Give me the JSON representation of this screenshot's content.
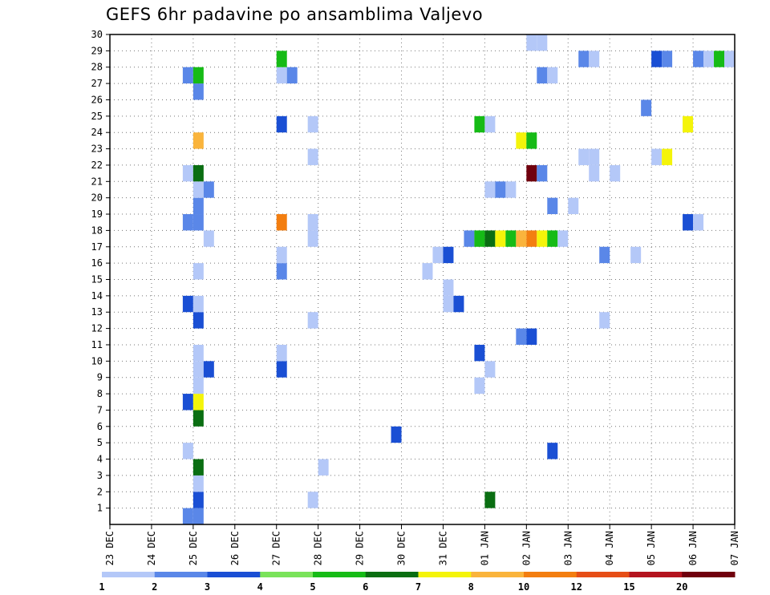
{
  "title": "GEFS 6hr padavine po ansamblima Valjevo",
  "chart_data": {
    "type": "heatmap",
    "title": "GEFS 6hr padavine po ansamblima Valjevo",
    "xlabel": "",
    "ylabel": "",
    "x_tick_labels": [
      "23 DEC",
      "24 DEC",
      "25 DEC",
      "26 DEC",
      "27 DEC",
      "28 DEC",
      "29 DEC",
      "30 DEC",
      "31 DEC",
      "01 JAN",
      "02 JAN",
      "03 JAN",
      "04 JAN",
      "05 JAN",
      "06 JAN",
      "07 JAN"
    ],
    "y_tick_labels": [
      "1",
      "2",
      "3",
      "4",
      "5",
      "6",
      "7",
      "8",
      "9",
      "10",
      "11",
      "12",
      "13",
      "14",
      "15",
      "16",
      "17",
      "18",
      "19",
      "20",
      "21",
      "22",
      "23",
      "24",
      "25",
      "26",
      "27",
      "28",
      "29",
      "30"
    ],
    "ylim": [
      0,
      30
    ],
    "time_step_hours": 6,
    "grid": true,
    "colorbar": {
      "position": "bottom",
      "labels": [
        "1",
        "2",
        "3",
        "4",
        "5",
        "6",
        "7",
        "8",
        "10",
        "12",
        "15",
        "20"
      ],
      "colors": [
        "#b4c8f8",
        "#5a87e8",
        "#1a4fd4",
        "#7ae35a",
        "#16bb16",
        "#0a6e12",
        "#f4f40a",
        "#fab43c",
        "#f37e10",
        "#e64e16",
        "#b4141e",
        "#70000e"
      ]
    },
    "cells": [
      {
        "member": 0,
        "date": "24 DEC",
        "hour": 18,
        "value": 2
      },
      {
        "member": 0,
        "date": "25 DEC",
        "hour": 0,
        "value": 2
      },
      {
        "member": 1,
        "date": "25 DEC",
        "hour": 0,
        "value": 3
      },
      {
        "member": 1,
        "date": "27 DEC",
        "hour": 18,
        "value": 1
      },
      {
        "member": 1,
        "date": "01 JAN",
        "hour": 0,
        "value": 6
      },
      {
        "member": 2,
        "date": "25 DEC",
        "hour": 0,
        "value": 1
      },
      {
        "member": 3,
        "date": "25 DEC",
        "hour": 0,
        "value": 6
      },
      {
        "member": 3,
        "date": "28 DEC",
        "hour": 0,
        "value": 1
      },
      {
        "member": 4,
        "date": "24 DEC",
        "hour": 18,
        "value": 1
      },
      {
        "member": 4,
        "date": "02 JAN",
        "hour": 12,
        "value": 3
      },
      {
        "member": 5,
        "date": "29 DEC",
        "hour": 18,
        "value": 3
      },
      {
        "member": 6,
        "date": "25 DEC",
        "hour": 0,
        "value": 6
      },
      {
        "member": 7,
        "date": "24 DEC",
        "hour": 18,
        "value": 3
      },
      {
        "member": 7,
        "date": "25 DEC",
        "hour": 0,
        "value": 7
      },
      {
        "member": 8,
        "date": "25 DEC",
        "hour": 0,
        "value": 1
      },
      {
        "member": 8,
        "date": "31 DEC",
        "hour": 18,
        "value": 1
      },
      {
        "member": 9,
        "date": "25 DEC",
        "hour": 0,
        "value": 1
      },
      {
        "member": 9,
        "date": "25 DEC",
        "hour": 6,
        "value": 3
      },
      {
        "member": 9,
        "date": "27 DEC",
        "hour": 0,
        "value": 3
      },
      {
        "member": 9,
        "date": "01 JAN",
        "hour": 0,
        "value": 1
      },
      {
        "member": 10,
        "date": "25 DEC",
        "hour": 0,
        "value": 1
      },
      {
        "member": 10,
        "date": "27 DEC",
        "hour": 0,
        "value": 1
      },
      {
        "member": 10,
        "date": "31 DEC",
        "hour": 18,
        "value": 3
      },
      {
        "member": 11,
        "date": "01 JAN",
        "hour": 18,
        "value": 2
      },
      {
        "member": 11,
        "date": "02 JAN",
        "hour": 0,
        "value": 3
      },
      {
        "member": 12,
        "date": "25 DEC",
        "hour": 0,
        "value": 3
      },
      {
        "member": 12,
        "date": "27 DEC",
        "hour": 18,
        "value": 1
      },
      {
        "member": 12,
        "date": "03 JAN",
        "hour": 18,
        "value": 1
      },
      {
        "member": 13,
        "date": "24 DEC",
        "hour": 18,
        "value": 3
      },
      {
        "member": 13,
        "date": "25 DEC",
        "hour": 0,
        "value": 1
      },
      {
        "member": 13,
        "date": "31 DEC",
        "hour": 0,
        "value": 1
      },
      {
        "member": 13,
        "date": "31 DEC",
        "hour": 6,
        "value": 3
      },
      {
        "member": 14,
        "date": "31 DEC",
        "hour": 0,
        "value": 1
      },
      {
        "member": 15,
        "date": "25 DEC",
        "hour": 0,
        "value": 1
      },
      {
        "member": 15,
        "date": "27 DEC",
        "hour": 0,
        "value": 2
      },
      {
        "member": 15,
        "date": "30 DEC",
        "hour": 12,
        "value": 1
      },
      {
        "member": 16,
        "date": "27 DEC",
        "hour": 0,
        "value": 1
      },
      {
        "member": 16,
        "date": "30 DEC",
        "hour": 18,
        "value": 1
      },
      {
        "member": 16,
        "date": "31 DEC",
        "hour": 0,
        "value": 3
      },
      {
        "member": 16,
        "date": "03 JAN",
        "hour": 18,
        "value": 2
      },
      {
        "member": 16,
        "date": "04 JAN",
        "hour": 12,
        "value": 1
      },
      {
        "member": 17,
        "date": "25 DEC",
        "hour": 6,
        "value": 1
      },
      {
        "member": 17,
        "date": "27 DEC",
        "hour": 18,
        "value": 1
      },
      {
        "member": 17,
        "date": "31 DEC",
        "hour": 12,
        "value": 2
      },
      {
        "member": 17,
        "date": "31 DEC",
        "hour": 18,
        "value": 5
      },
      {
        "member": 17,
        "date": "01 JAN",
        "hour": 0,
        "value": 6
      },
      {
        "member": 17,
        "date": "01 JAN",
        "hour": 6,
        "value": 7
      },
      {
        "member": 17,
        "date": "01 JAN",
        "hour": 12,
        "value": 5
      },
      {
        "member": 17,
        "date": "01 JAN",
        "hour": 18,
        "value": 8
      },
      {
        "member": 17,
        "date": "02 JAN",
        "hour": 0,
        "value": 10
      },
      {
        "member": 17,
        "date": "02 JAN",
        "hour": 6,
        "value": 7
      },
      {
        "member": 17,
        "date": "02 JAN",
        "hour": 12,
        "value": 5
      },
      {
        "member": 17,
        "date": "02 JAN",
        "hour": 18,
        "value": 1
      },
      {
        "member": 18,
        "date": "24 DEC",
        "hour": 18,
        "value": 2
      },
      {
        "member": 18,
        "date": "25 DEC",
        "hour": 0,
        "value": 2
      },
      {
        "member": 18,
        "date": "27 DEC",
        "hour": 0,
        "value": 10
      },
      {
        "member": 18,
        "date": "27 DEC",
        "hour": 18,
        "value": 1
      },
      {
        "member": 18,
        "date": "05 JAN",
        "hour": 18,
        "value": 3
      },
      {
        "member": 18,
        "date": "06 JAN",
        "hour": 0,
        "value": 1
      },
      {
        "member": 19,
        "date": "25 DEC",
        "hour": 0,
        "value": 2
      },
      {
        "member": 19,
        "date": "02 JAN",
        "hour": 12,
        "value": 2
      },
      {
        "member": 19,
        "date": "03 JAN",
        "hour": 0,
        "value": 1
      },
      {
        "member": 20,
        "date": "25 DEC",
        "hour": 0,
        "value": 1
      },
      {
        "member": 20,
        "date": "25 DEC",
        "hour": 6,
        "value": 2
      },
      {
        "member": 20,
        "date": "01 JAN",
        "hour": 0,
        "value": 1
      },
      {
        "member": 20,
        "date": "01 JAN",
        "hour": 6,
        "value": 2
      },
      {
        "member": 20,
        "date": "01 JAN",
        "hour": 12,
        "value": 1
      },
      {
        "member": 21,
        "date": "24 DEC",
        "hour": 18,
        "value": 1
      },
      {
        "member": 21,
        "date": "25 DEC",
        "hour": 0,
        "value": 6
      },
      {
        "member": 21,
        "date": "02 JAN",
        "hour": 0,
        "value": 20
      },
      {
        "member": 21,
        "date": "02 JAN",
        "hour": 6,
        "value": 2
      },
      {
        "member": 21,
        "date": "03 JAN",
        "hour": 12,
        "value": 1
      },
      {
        "member": 21,
        "date": "04 JAN",
        "hour": 0,
        "value": 1
      },
      {
        "member": 22,
        "date": "27 DEC",
        "hour": 18,
        "value": 1
      },
      {
        "member": 22,
        "date": "03 JAN",
        "hour": 6,
        "value": 1
      },
      {
        "member": 22,
        "date": "03 JAN",
        "hour": 12,
        "value": 1
      },
      {
        "member": 22,
        "date": "05 JAN",
        "hour": 0,
        "value": 1
      },
      {
        "member": 22,
        "date": "05 JAN",
        "hour": 6,
        "value": 7
      },
      {
        "member": 23,
        "date": "25 DEC",
        "hour": 0,
        "value": 8
      },
      {
        "member": 23,
        "date": "01 JAN",
        "hour": 18,
        "value": 7
      },
      {
        "member": 23,
        "date": "02 JAN",
        "hour": 0,
        "value": 5
      },
      {
        "member": 24,
        "date": "27 DEC",
        "hour": 0,
        "value": 3
      },
      {
        "member": 24,
        "date": "27 DEC",
        "hour": 18,
        "value": 1
      },
      {
        "member": 24,
        "date": "31 DEC",
        "hour": 18,
        "value": 5
      },
      {
        "member": 24,
        "date": "01 JAN",
        "hour": 0,
        "value": 1
      },
      {
        "member": 24,
        "date": "05 JAN",
        "hour": 18,
        "value": 7
      },
      {
        "member": 25,
        "date": "04 JAN",
        "hour": 18,
        "value": 2
      },
      {
        "member": 26,
        "date": "25 DEC",
        "hour": 0,
        "value": 2
      },
      {
        "member": 27,
        "date": "24 DEC",
        "hour": 18,
        "value": 2
      },
      {
        "member": 27,
        "date": "25 DEC",
        "hour": 0,
        "value": 5
      },
      {
        "member": 27,
        "date": "27 DEC",
        "hour": 0,
        "value": 1
      },
      {
        "member": 27,
        "date": "27 DEC",
        "hour": 6,
        "value": 2
      },
      {
        "member": 27,
        "date": "02 JAN",
        "hour": 6,
        "value": 2
      },
      {
        "member": 27,
        "date": "02 JAN",
        "hour": 12,
        "value": 1
      },
      {
        "member": 28,
        "date": "27 DEC",
        "hour": 0,
        "value": 5
      },
      {
        "member": 28,
        "date": "03 JAN",
        "hour": 6,
        "value": 2
      },
      {
        "member": 28,
        "date": "03 JAN",
        "hour": 12,
        "value": 1
      },
      {
        "member": 28,
        "date": "05 JAN",
        "hour": 0,
        "value": 3
      },
      {
        "member": 28,
        "date": "05 JAN",
        "hour": 6,
        "value": 2
      },
      {
        "member": 28,
        "date": "06 JAN",
        "hour": 0,
        "value": 2
      },
      {
        "member": 28,
        "date": "06 JAN",
        "hour": 6,
        "value": 1
      },
      {
        "member": 28,
        "date": "06 JAN",
        "hour": 12,
        "value": 5
      },
      {
        "member": 28,
        "date": "06 JAN",
        "hour": 18,
        "value": 1
      },
      {
        "member": 29,
        "date": "02 JAN",
        "hour": 0,
        "value": 1
      },
      {
        "member": 29,
        "date": "02 JAN",
        "hour": 6,
        "value": 1
      }
    ]
  }
}
